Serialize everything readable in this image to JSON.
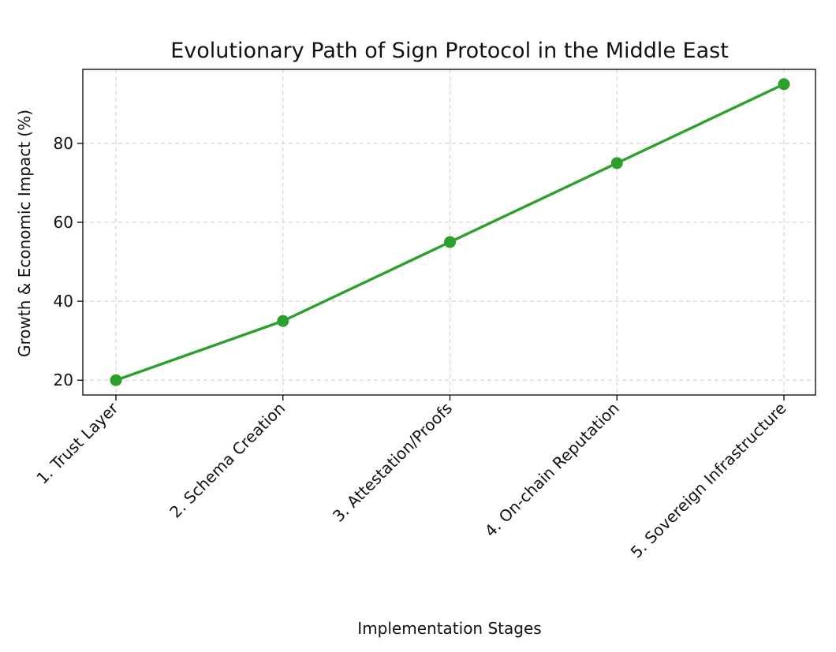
{
  "chart_data": {
    "type": "line",
    "title": "Evolutionary Path of Sign Protocol in the Middle East",
    "xlabel": "Implementation Stages",
    "ylabel": "Growth & Economic Impact (%)",
    "categories": [
      "1. Trust Layer",
      "2. Schema Creation",
      "3. Attestation/Proofs",
      "4. On-chain Reputation",
      "5. Sovereign Infrastructure"
    ],
    "series": [
      {
        "values": [
          20,
          35,
          55,
          75,
          95
        ]
      }
    ],
    "ylim": [
      16.25,
      98.75
    ],
    "yticks": [
      20,
      40,
      60,
      80
    ],
    "grid": true,
    "line_color": "#2ca02c"
  }
}
